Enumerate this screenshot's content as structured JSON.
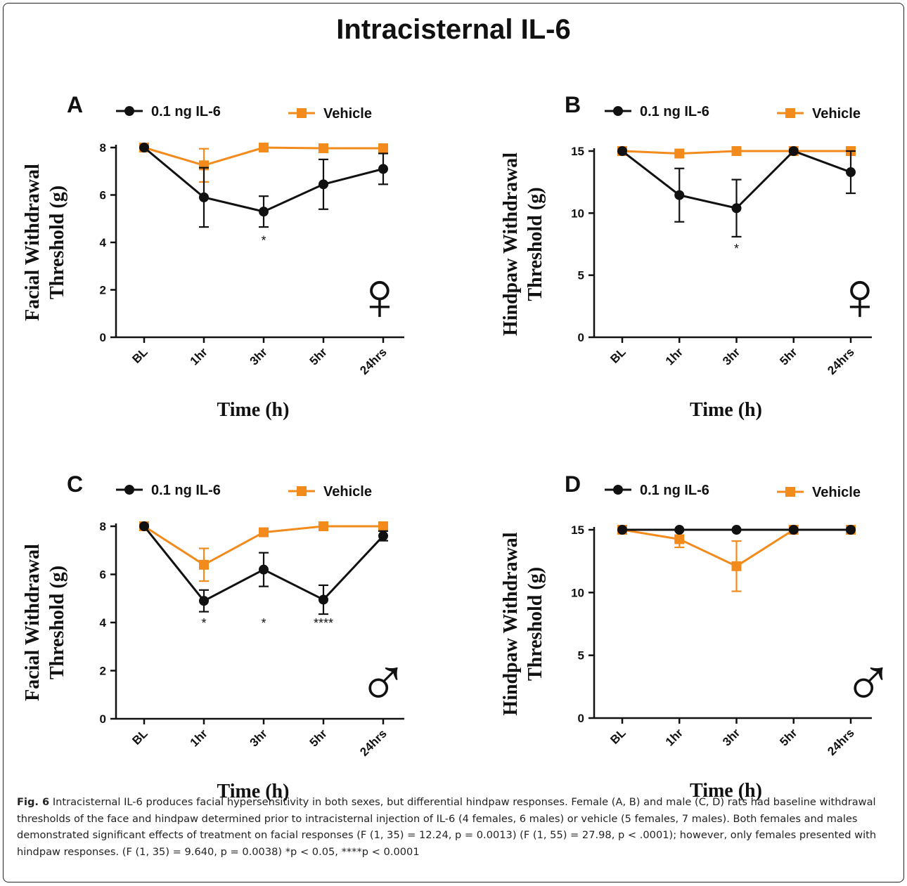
{
  "figure_title": "Intracisternal IL-6",
  "caption": {
    "fig_label": "Fig. 6",
    "text": "Intracisternal IL-6 produces facial hypersensitivity in both sexes, but differential hindpaw responses. Female (A, B) and male (C, D) rats had baseline withdrawal thresholds of the face and hindpaw determined prior to intracisternal injection of IL-6 (4 females, 6 males) or vehicle (5 females, 7 males). Both females and males demonstrated significant effects of treatment on facial responses (F (1, 35) = 12.24, p = 0.0013) (F (1, 55) = 27.98, p < .0001); however, only females presented with hindpaw responses. (F (1, 35) = 9.640, p = 0.0038) *p < 0.05, ****p < 0.0001"
  },
  "colors": {
    "il6": "#111111",
    "vehicle": "#f28a1c"
  },
  "chart_data": [
    {
      "panel": "A",
      "type": "line",
      "ylabel": [
        "Facial Withdrawal",
        "Threshold (g)"
      ],
      "xlabel": "Time (h)",
      "categories": [
        "BL",
        "1hr",
        "3hr",
        "5hr",
        "24hrs"
      ],
      "ylim": [
        0,
        8
      ],
      "yticks": [
        0,
        2,
        4,
        6,
        8
      ],
      "sex_symbol": "♀",
      "series": [
        {
          "name": "0.1 ng IL-6",
          "values": [
            8.0,
            5.9,
            5.3,
            6.45,
            7.1
          ],
          "errors": [
            0,
            1.25,
            0.65,
            1.05,
            0.65
          ]
        },
        {
          "name": "Vehicle",
          "values": [
            8.0,
            7.25,
            8.0,
            7.97,
            7.97
          ],
          "errors": [
            0,
            0.7,
            0,
            0,
            0
          ]
        }
      ],
      "significance": [
        {
          "category": "3hr",
          "label": "*",
          "y": 3.9
        }
      ]
    },
    {
      "panel": "B",
      "type": "line",
      "ylabel": [
        "Hindpaw Withdrawal",
        "Threshold (g)"
      ],
      "xlabel": "Time (h)",
      "categories": [
        "BL",
        "1hr",
        "3hr",
        "5hr",
        "24hrs"
      ],
      "ylim": [
        0,
        15
      ],
      "yticks": [
        0,
        5,
        10,
        15
      ],
      "sex_symbol": "♀",
      "series": [
        {
          "name": "0.1 ng IL-6",
          "values": [
            15,
            11.45,
            10.4,
            15,
            13.3
          ],
          "errors": [
            0,
            2.15,
            2.3,
            0,
            1.7
          ]
        },
        {
          "name": "Vehicle",
          "values": [
            15,
            14.8,
            15,
            15,
            15
          ],
          "errors": [
            0,
            0,
            0,
            0,
            0
          ]
        }
      ],
      "significance": [
        {
          "category": "3hr",
          "label": "*",
          "y": 6.8
        }
      ]
    },
    {
      "panel": "C",
      "type": "line",
      "ylabel": [
        "Facial Withdrawal",
        "Threshold (g)"
      ],
      "xlabel": "Time (h)",
      "categories": [
        "BL",
        "1hr",
        "3hr",
        "5hr",
        "24hrs"
      ],
      "ylim": [
        0,
        8
      ],
      "yticks": [
        0,
        2,
        4,
        6,
        8
      ],
      "sex_symbol": "♂",
      "series": [
        {
          "name": "0.1 ng IL-6",
          "values": [
            8.0,
            4.9,
            6.2,
            4.95,
            7.6
          ],
          "errors": [
            0,
            0.45,
            0.7,
            0.6,
            0.2
          ]
        },
        {
          "name": "Vehicle",
          "values": [
            8.0,
            6.4,
            7.75,
            8.0,
            8.0
          ],
          "errors": [
            0,
            0.68,
            0,
            0,
            0
          ]
        }
      ],
      "significance": [
        {
          "category": "1hr",
          "label": "*",
          "y": 3.8
        },
        {
          "category": "3hr",
          "label": "*",
          "y": 3.8
        },
        {
          "category": "5hr",
          "label": "****",
          "y": 3.8
        }
      ]
    },
    {
      "panel": "D",
      "type": "line",
      "ylabel": [
        "Hindpaw Withdrawal",
        "Threshold (g)"
      ],
      "xlabel": "Time (h)",
      "categories": [
        "BL",
        "1hr",
        "3hr",
        "5hr",
        "24hrs"
      ],
      "ylim": [
        0,
        15
      ],
      "yticks": [
        0,
        5,
        10,
        15
      ],
      "sex_symbol": "♂",
      "series": [
        {
          "name": "0.1 ng IL-6",
          "values": [
            15,
            15,
            15,
            15,
            15
          ],
          "errors": [
            0,
            0,
            0,
            0,
            0
          ]
        },
        {
          "name": "Vehicle",
          "values": [
            15,
            14.25,
            12.1,
            15,
            15
          ],
          "errors": [
            0,
            0.65,
            2.0,
            0,
            0
          ]
        }
      ],
      "significance": []
    }
  ]
}
